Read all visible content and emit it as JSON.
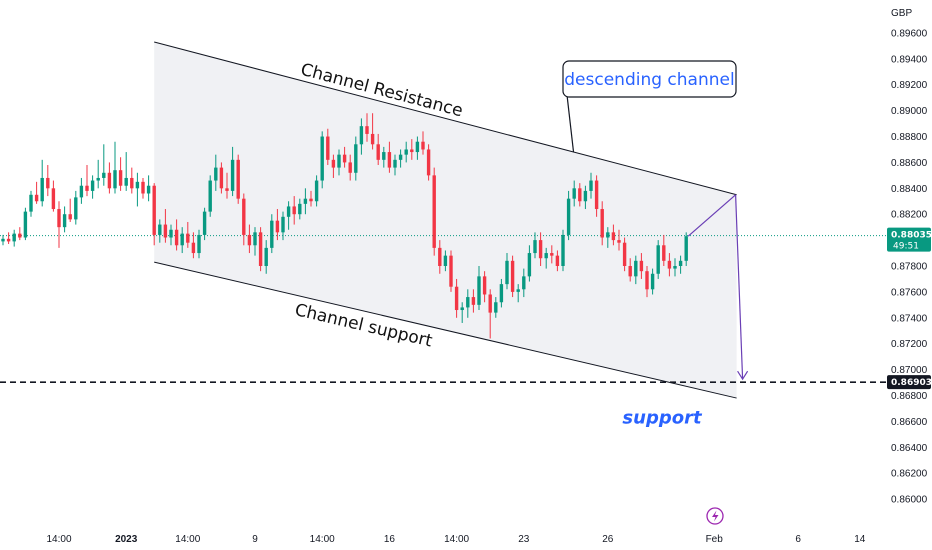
{
  "chart_data": {
    "type": "candlestick",
    "currency": "GBP",
    "ylim": [
      0.859,
      0.897
    ],
    "y_ticks": [
      "0.89600",
      "0.89400",
      "0.89200",
      "0.89000",
      "0.88800",
      "0.88600",
      "0.88400",
      "0.88200",
      "0.87800",
      "0.87600",
      "0.87400",
      "0.87200",
      "0.87000",
      "0.86800",
      "0.86600",
      "0.86400",
      "0.86200",
      "0.86000"
    ],
    "x_ticks": [
      {
        "label": "14:00",
        "bar": 10,
        "bold": false
      },
      {
        "label": "2023",
        "bar": 22,
        "bold": true
      },
      {
        "label": "14:00",
        "bar": 33,
        "bold": false
      },
      {
        "label": "9",
        "bar": 45,
        "bold": false
      },
      {
        "label": "14:00",
        "bar": 57,
        "bold": false
      },
      {
        "label": "16",
        "bar": 69,
        "bold": false
      },
      {
        "label": "14:00",
        "bar": 81,
        "bold": false
      },
      {
        "label": "23",
        "bar": 93,
        "bold": false
      },
      {
        "label": "26",
        "bar": 108,
        "bold": false
      },
      {
        "label": "Feb",
        "bar": 127,
        "bold": false
      },
      {
        "label": "6",
        "bar": 142,
        "bold": false
      },
      {
        "label": "14",
        "bar": 153,
        "bold": false
      }
    ],
    "current_price": {
      "label": "0.88035",
      "countdown": "49:51",
      "value": 0.88035,
      "color": "#089981"
    },
    "support_level": {
      "label": "0.86903",
      "value": 0.86903
    },
    "channel": {
      "resistance": {
        "label": "Channel Resistance",
        "start": {
          "bar": 27,
          "price": 0.8953
        },
        "end": {
          "bar": 131,
          "price": 0.8835
        }
      },
      "support": {
        "label": "Channel support",
        "start": {
          "bar": 27,
          "price": 0.8783
        },
        "end": {
          "bar": 131,
          "price": 0.8678
        }
      },
      "fill": "#f0f1f4"
    },
    "annotations": {
      "callout": "descending channel",
      "support_text": "support"
    },
    "colors": {
      "up": "#089981",
      "down": "#f23645",
      "line": "#131722",
      "projection": "#6a3fb5"
    },
    "candles": [
      [
        0.8799,
        0.8804,
        0.8796,
        0.8801
      ],
      [
        0.8801,
        0.8806,
        0.8797,
        0.8799
      ],
      [
        0.8799,
        0.8808,
        0.8795,
        0.8805
      ],
      [
        0.8805,
        0.881,
        0.88,
        0.8802
      ],
      [
        0.8802,
        0.8825,
        0.88,
        0.8822
      ],
      [
        0.8822,
        0.8838,
        0.8818,
        0.8835
      ],
      [
        0.8835,
        0.8845,
        0.8828,
        0.883
      ],
      [
        0.883,
        0.8862,
        0.8826,
        0.8848
      ],
      [
        0.8848,
        0.8858,
        0.8834,
        0.884
      ],
      [
        0.884,
        0.8846,
        0.8822,
        0.8824
      ],
      [
        0.8824,
        0.883,
        0.8794,
        0.881
      ],
      [
        0.881,
        0.8826,
        0.8806,
        0.882
      ],
      [
        0.882,
        0.8832,
        0.8814,
        0.8816
      ],
      [
        0.8816,
        0.8838,
        0.8812,
        0.8833
      ],
      [
        0.8833,
        0.8848,
        0.8828,
        0.8842
      ],
      [
        0.8842,
        0.8858,
        0.8834,
        0.8838
      ],
      [
        0.8838,
        0.885,
        0.8832,
        0.8846
      ],
      [
        0.8846,
        0.8862,
        0.884,
        0.8848
      ],
      [
        0.8848,
        0.8874,
        0.8842,
        0.8852
      ],
      [
        0.8852,
        0.886,
        0.8836,
        0.884
      ],
      [
        0.884,
        0.8876,
        0.8836,
        0.8854
      ],
      [
        0.8854,
        0.8864,
        0.8838,
        0.8842
      ],
      [
        0.8842,
        0.8868,
        0.8838,
        0.8848
      ],
      [
        0.8848,
        0.8856,
        0.8836,
        0.884
      ],
      [
        0.884,
        0.8852,
        0.8826,
        0.8845
      ],
      [
        0.8845,
        0.8848,
        0.8832,
        0.8836
      ],
      [
        0.8836,
        0.885,
        0.883,
        0.8842
      ],
      [
        0.8842,
        0.8844,
        0.8796,
        0.8804
      ],
      [
        0.8804,
        0.8816,
        0.8798,
        0.8812
      ],
      [
        0.8812,
        0.8824,
        0.8798,
        0.8802
      ],
      [
        0.8802,
        0.8812,
        0.8796,
        0.8808
      ],
      [
        0.8808,
        0.8816,
        0.8792,
        0.8796
      ],
      [
        0.8796,
        0.881,
        0.879,
        0.8805
      ],
      [
        0.8805,
        0.8814,
        0.8794,
        0.8798
      ],
      [
        0.8798,
        0.8806,
        0.8786,
        0.879
      ],
      [
        0.879,
        0.8808,
        0.8786,
        0.8804
      ],
      [
        0.8804,
        0.8825,
        0.88,
        0.8822
      ],
      [
        0.8822,
        0.885,
        0.8818,
        0.8846
      ],
      [
        0.8846,
        0.8866,
        0.8838,
        0.8856
      ],
      [
        0.8856,
        0.886,
        0.8836,
        0.884
      ],
      [
        0.884,
        0.8852,
        0.8832,
        0.8838
      ],
      [
        0.8838,
        0.8872,
        0.8834,
        0.8862
      ],
      [
        0.8862,
        0.8866,
        0.8828,
        0.8832
      ],
      [
        0.8832,
        0.8836,
        0.8796,
        0.8804
      ],
      [
        0.8804,
        0.8812,
        0.879,
        0.8796
      ],
      [
        0.8796,
        0.881,
        0.8788,
        0.8806
      ],
      [
        0.8806,
        0.881,
        0.8776,
        0.878
      ],
      [
        0.878,
        0.88,
        0.8774,
        0.8794
      ],
      [
        0.8794,
        0.882,
        0.879,
        0.8815
      ],
      [
        0.8815,
        0.8824,
        0.88,
        0.8806
      ],
      [
        0.8806,
        0.8822,
        0.88,
        0.8818
      ],
      [
        0.8818,
        0.883,
        0.8808,
        0.8826
      ],
      [
        0.8826,
        0.8834,
        0.8812,
        0.882
      ],
      [
        0.882,
        0.8832,
        0.8816,
        0.8828
      ],
      [
        0.8828,
        0.884,
        0.882,
        0.8832
      ],
      [
        0.8832,
        0.8838,
        0.8826,
        0.883
      ],
      [
        0.883,
        0.885,
        0.8826,
        0.8846
      ],
      [
        0.8846,
        0.8884,
        0.884,
        0.888
      ],
      [
        0.888,
        0.8886,
        0.8858,
        0.8862
      ],
      [
        0.8862,
        0.8866,
        0.8848,
        0.8856
      ],
      [
        0.8856,
        0.887,
        0.885,
        0.8866
      ],
      [
        0.8866,
        0.8872,
        0.8856,
        0.886
      ],
      [
        0.886,
        0.8866,
        0.8846,
        0.8852
      ],
      [
        0.8852,
        0.888,
        0.8846,
        0.8874
      ],
      [
        0.8874,
        0.8894,
        0.8866,
        0.8888
      ],
      [
        0.8888,
        0.8898,
        0.8876,
        0.8882
      ],
      [
        0.8882,
        0.8898,
        0.887,
        0.8874
      ],
      [
        0.8874,
        0.8882,
        0.8858,
        0.8862
      ],
      [
        0.8862,
        0.8872,
        0.8856,
        0.8868
      ],
      [
        0.8868,
        0.8876,
        0.8852,
        0.8856
      ],
      [
        0.8856,
        0.8866,
        0.885,
        0.8862
      ],
      [
        0.8862,
        0.887,
        0.8856,
        0.8866
      ],
      [
        0.8866,
        0.8876,
        0.886,
        0.887
      ],
      [
        0.887,
        0.8878,
        0.8862,
        0.8868
      ],
      [
        0.8868,
        0.888,
        0.8862,
        0.8876
      ],
      [
        0.8876,
        0.8884,
        0.8866,
        0.887
      ],
      [
        0.887,
        0.8874,
        0.8846,
        0.885
      ],
      [
        0.885,
        0.8856,
        0.8788,
        0.8794
      ],
      [
        0.8794,
        0.88,
        0.8774,
        0.878
      ],
      [
        0.878,
        0.8792,
        0.8776,
        0.8788
      ],
      [
        0.8788,
        0.8792,
        0.876,
        0.8764
      ],
      [
        0.8764,
        0.877,
        0.874,
        0.8746
      ],
      [
        0.8746,
        0.8752,
        0.8736,
        0.8748
      ],
      [
        0.8748,
        0.8762,
        0.874,
        0.8756
      ],
      [
        0.8756,
        0.8762,
        0.8744,
        0.875
      ],
      [
        0.875,
        0.878,
        0.8746,
        0.8772
      ],
      [
        0.8772,
        0.8776,
        0.8752,
        0.8758
      ],
      [
        0.8758,
        0.8762,
        0.8724,
        0.8744
      ],
      [
        0.8744,
        0.8756,
        0.874,
        0.8752
      ],
      [
        0.8752,
        0.877,
        0.8748,
        0.8766
      ],
      [
        0.8766,
        0.879,
        0.8762,
        0.8784
      ],
      [
        0.8784,
        0.8788,
        0.8756,
        0.876
      ],
      [
        0.876,
        0.8766,
        0.8752,
        0.8762
      ],
      [
        0.8762,
        0.8778,
        0.8756,
        0.8772
      ],
      [
        0.8772,
        0.8796,
        0.8768,
        0.879
      ],
      [
        0.879,
        0.8806,
        0.8786,
        0.88
      ],
      [
        0.88,
        0.8806,
        0.878,
        0.8786
      ],
      [
        0.8786,
        0.8794,
        0.8778,
        0.879
      ],
      [
        0.879,
        0.8796,
        0.8782,
        0.8788
      ],
      [
        0.8788,
        0.8792,
        0.8776,
        0.878
      ],
      [
        0.878,
        0.8808,
        0.8776,
        0.8804
      ],
      [
        0.8804,
        0.8838,
        0.88,
        0.8832
      ],
      [
        0.8832,
        0.8846,
        0.8826,
        0.884
      ],
      [
        0.884,
        0.8844,
        0.8826,
        0.883
      ],
      [
        0.883,
        0.8842,
        0.8824,
        0.8838
      ],
      [
        0.8838,
        0.8852,
        0.8832,
        0.8846
      ],
      [
        0.8846,
        0.885,
        0.8818,
        0.8824
      ],
      [
        0.8824,
        0.883,
        0.8796,
        0.8802
      ],
      [
        0.8802,
        0.881,
        0.8794,
        0.8806
      ],
      [
        0.8806,
        0.8812,
        0.8796,
        0.88
      ],
      [
        0.88,
        0.8808,
        0.8792,
        0.8798
      ],
      [
        0.8798,
        0.8802,
        0.8776,
        0.878
      ],
      [
        0.878,
        0.8786,
        0.8768,
        0.8772
      ],
      [
        0.8772,
        0.8788,
        0.8766,
        0.8784
      ],
      [
        0.8784,
        0.879,
        0.877,
        0.8776
      ],
      [
        0.8776,
        0.878,
        0.8756,
        0.8762
      ],
      [
        0.8762,
        0.8778,
        0.8758,
        0.8774
      ],
      [
        0.8774,
        0.88,
        0.877,
        0.8796
      ],
      [
        0.8796,
        0.8804,
        0.878,
        0.8784
      ],
      [
        0.8784,
        0.879,
        0.8772,
        0.8778
      ],
      [
        0.8778,
        0.8786,
        0.8772,
        0.878
      ],
      [
        0.878,
        0.8788,
        0.8774,
        0.8784
      ],
      [
        0.8784,
        0.8806,
        0.878,
        0.8803
      ]
    ]
  }
}
